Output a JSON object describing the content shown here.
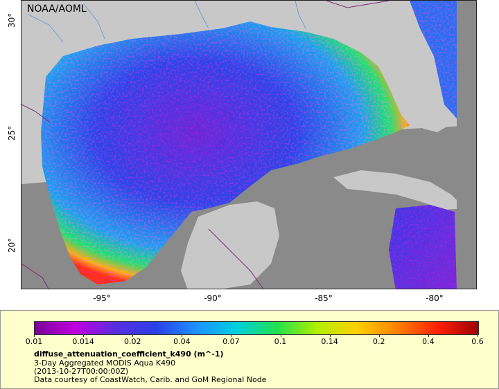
{
  "map": {
    "credit": "NOAA/AOML",
    "lat_labels": [
      "30°",
      "25°",
      "20°"
    ],
    "lon_labels": [
      "-95°",
      "-90°",
      "-85°",
      "-80°"
    ],
    "colors": {
      "land": "#c8c8c8",
      "no_data": "#8a8a8a",
      "rivers": "#6fa0d8",
      "borders": "#7b2c6e"
    }
  },
  "legend": {
    "ticks": [
      "0.01",
      "0.014",
      "0.02",
      "0.04",
      "0.07",
      "0.1",
      "0.14",
      "0.2",
      "0.4",
      "0.6"
    ],
    "variable": "diffuse_attenuation_coefficient_k490 (m^-1)",
    "dataset": "3-Day Aggregated MODIS Aqua K490",
    "time": "(2013-10-27T00:00:00Z)",
    "source": "Data courtesy of CoastWatch, Carib. and GoM Regional Node",
    "colormap": [
      "#7a0099",
      "#c000e0",
      "#5a2ee0",
      "#2a3fe8",
      "#1e90ff",
      "#00d0e0",
      "#20e050",
      "#b0f000",
      "#ffd000",
      "#ff8000",
      "#ff2000",
      "#a00000"
    ]
  }
}
